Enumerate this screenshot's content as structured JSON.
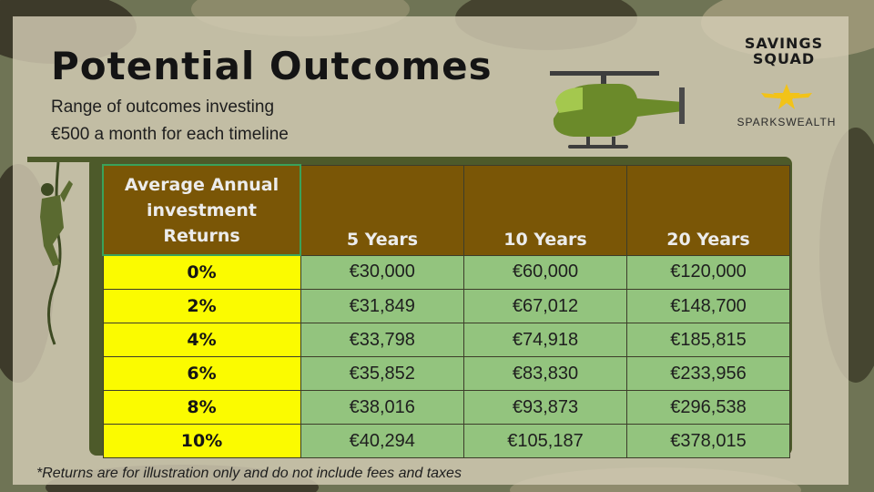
{
  "title": "Potential Outcomes",
  "subtitle_line1": "Range of outcomes investing",
  "subtitle_line2": "€500 a month for each timeline",
  "brand": {
    "line1": "SAVINGS",
    "line2": "SQUAD",
    "partner": "SPARKSWEALTH"
  },
  "table": {
    "corner_lines": [
      "Average Annual",
      "investment",
      "Returns"
    ],
    "columns": [
      "5 Years",
      "10 Years",
      "20 Years"
    ],
    "rows": [
      {
        "rate": "0%",
        "values": [
          "€30,000",
          "€60,000",
          "€120,000"
        ]
      },
      {
        "rate": "2%",
        "values": [
          "€31,849",
          "€67,012",
          "€148,700"
        ]
      },
      {
        "rate": "4%",
        "values": [
          "€33,798",
          "€74,918",
          "€185,815"
        ]
      },
      {
        "rate": "6%",
        "values": [
          "€35,852",
          "€83,830",
          "€233,956"
        ]
      },
      {
        "rate": "8%",
        "values": [
          "€38,016",
          "€93,873",
          "€296,538"
        ]
      },
      {
        "rate": "10%",
        "values": [
          "€40,294",
          "€105,187",
          "€378,015"
        ]
      }
    ]
  },
  "footnote": "*Returns are for illustration only and do not include fees and taxes",
  "colors": {
    "header": "#7a5606",
    "rate_cell": "#fbfb00",
    "value_cell": "#93c47e",
    "frame": "#4d5a2a"
  },
  "icons": [
    "camo-background",
    "helicopter-icon",
    "soldier-climbing-rope-icon",
    "winged-star-logo-icon"
  ]
}
